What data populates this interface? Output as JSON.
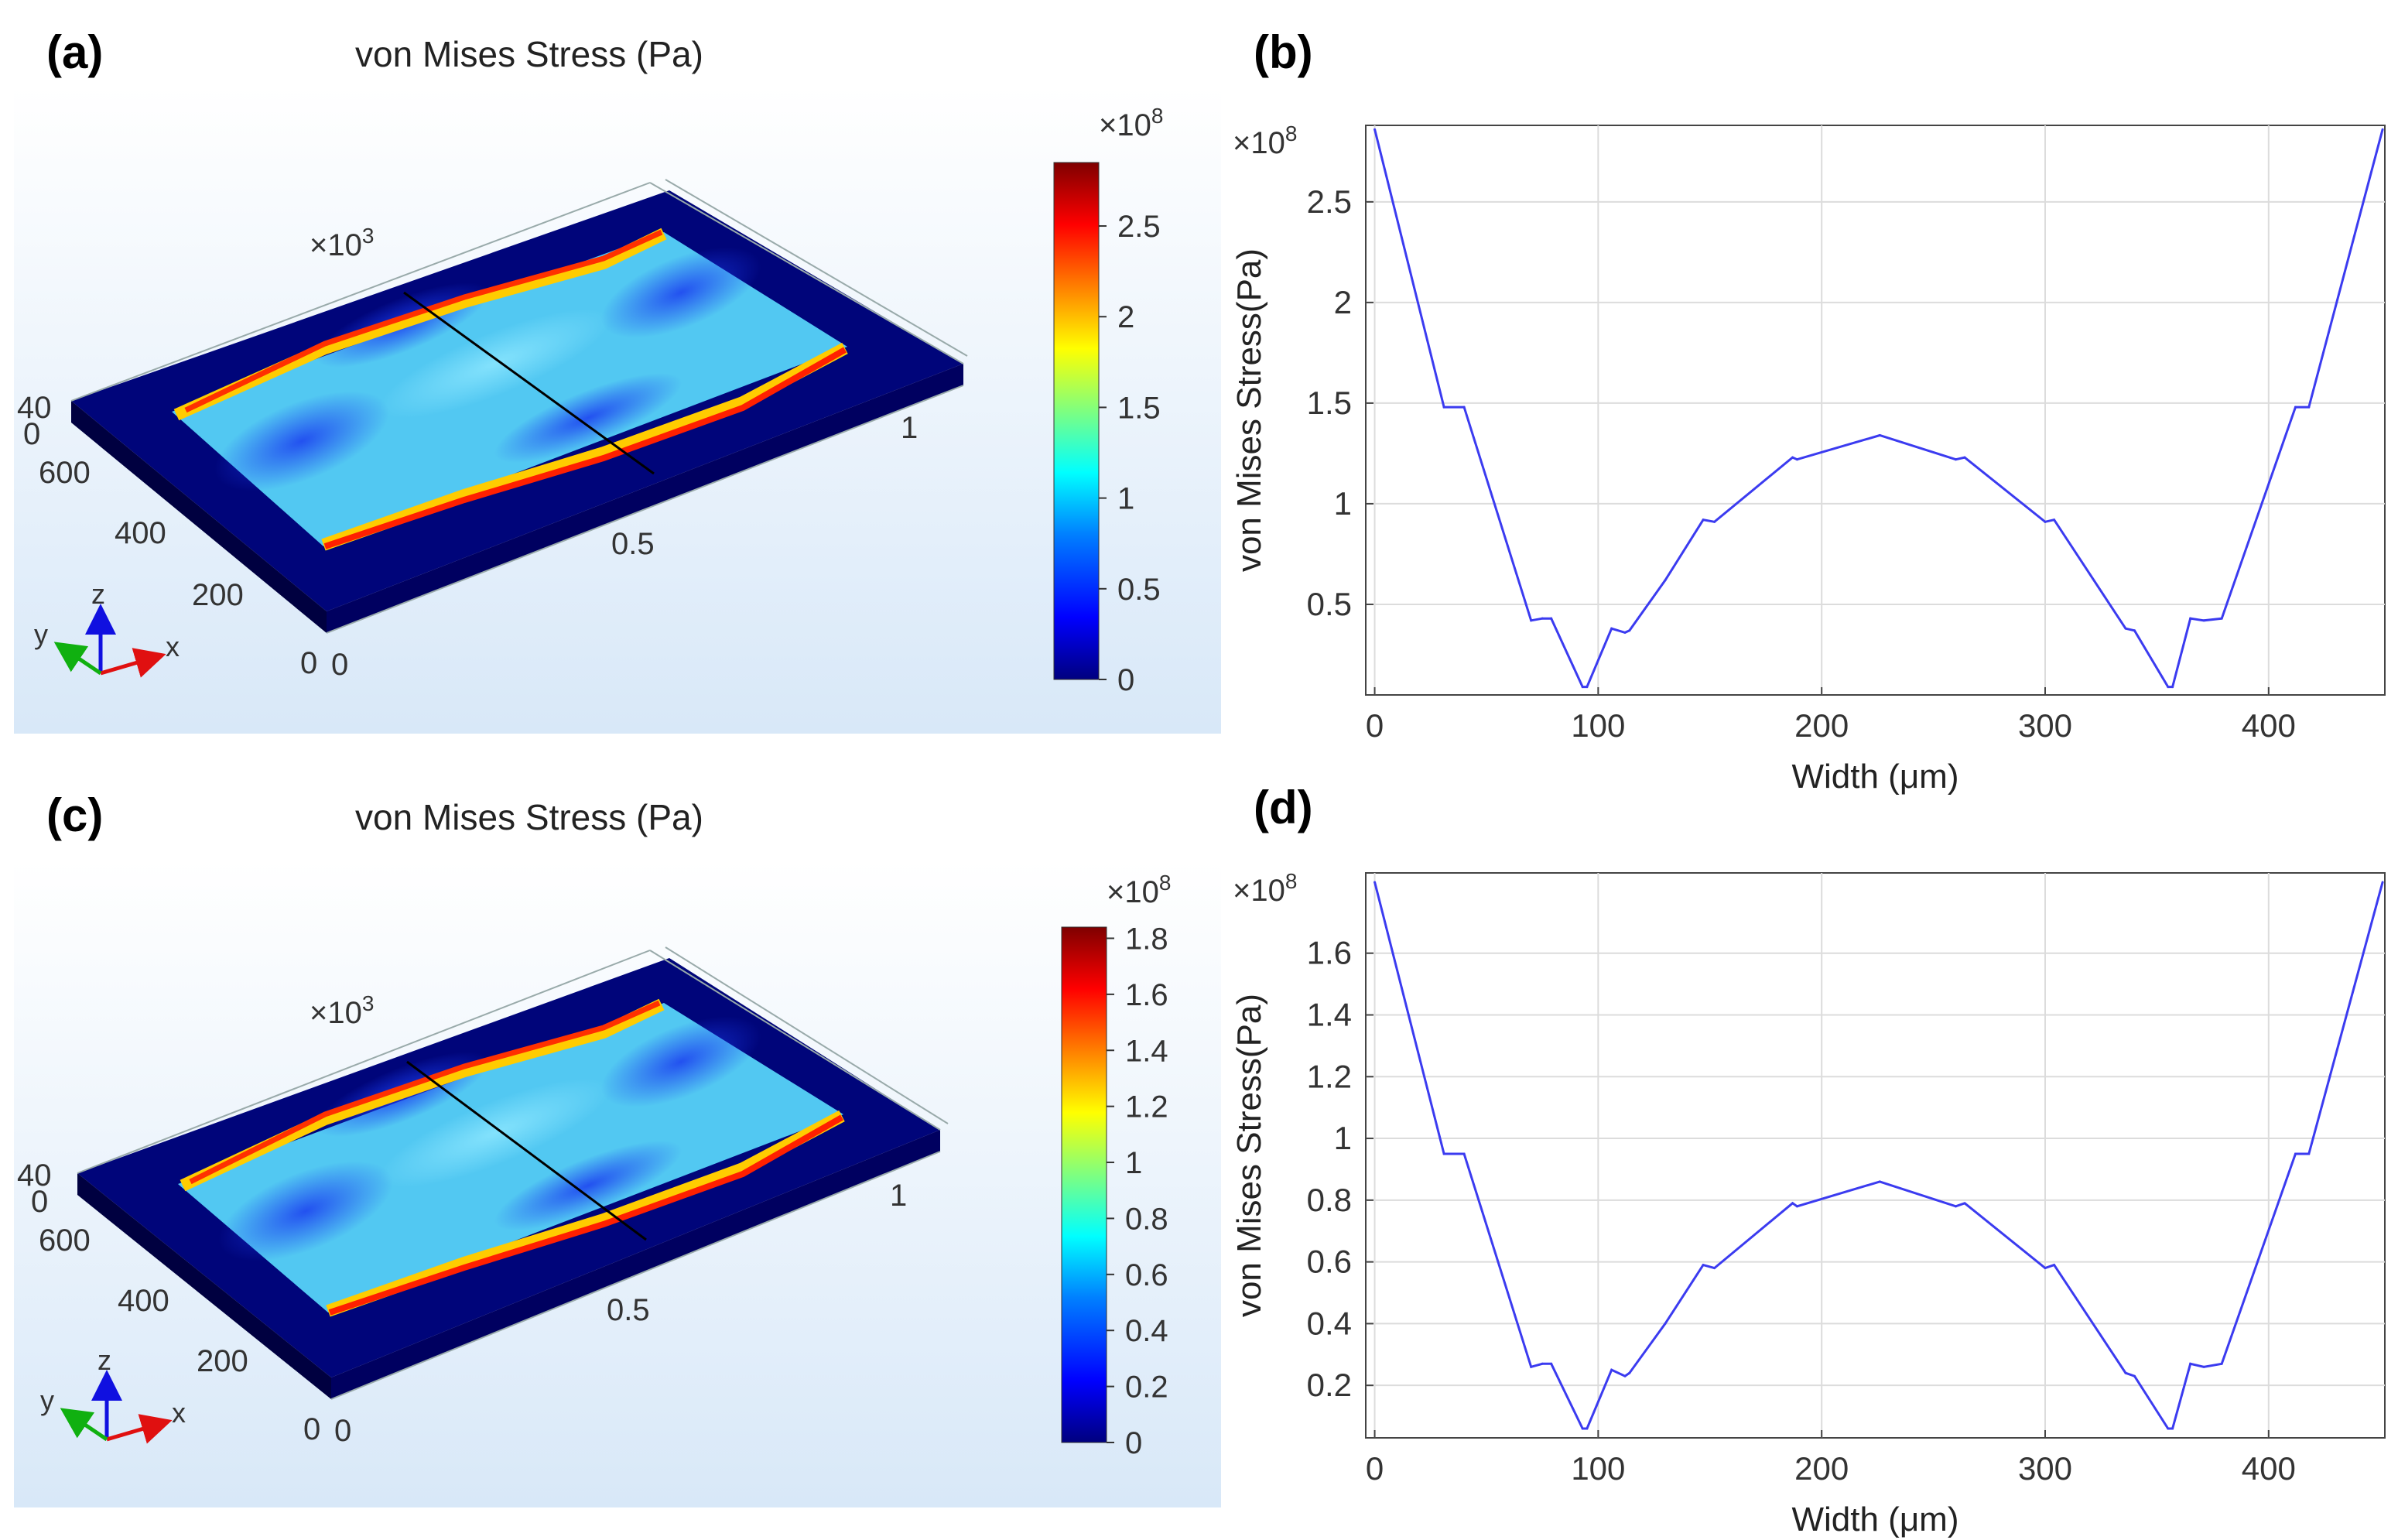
{
  "panels": {
    "a": {
      "label": "(a)",
      "title": "von Mises Stress (Pa)",
      "colorbar_multiplier": "×10",
      "colorbar_exp": "8",
      "colorbar_ticks": [
        "2.5",
        "2",
        "1.5",
        "1",
        "0.5",
        "0"
      ],
      "axis_multiplier": "×10",
      "axis_exp": "3",
      "axis_labels": {
        "z_top": "40",
        "z_zero": "0",
        "y600": "600",
        "y400": "400",
        "y200": "200",
        "origin": "0",
        "x0": "0",
        "x05": "0.5",
        "x1": "1"
      },
      "triad": {
        "x": "x",
        "y": "y",
        "z": "z"
      }
    },
    "b": {
      "label": "(b)"
    },
    "c": {
      "label": "(c)",
      "title": "von Mises Stress (Pa)",
      "colorbar_multiplier": "×10",
      "colorbar_exp": "8",
      "colorbar_ticks": [
        "1.8",
        "1.6",
        "1.4",
        "1.2",
        "1",
        "0.8",
        "0.6",
        "0.4",
        "0.2",
        "0"
      ],
      "axis_multiplier": "×10",
      "axis_exp": "3",
      "axis_labels": {
        "z_top": "40",
        "z_zero": "0",
        "y600": "600",
        "y400": "400",
        "y200": "200",
        "origin": "0",
        "x0": "0",
        "x05": "0.5",
        "x1": "1"
      },
      "triad": {
        "x": "x",
        "y": "y",
        "z": "z"
      }
    },
    "d": {
      "label": "(d)"
    }
  },
  "colors": {
    "line": "#3b3bf0",
    "grid": "#dcdcdc",
    "axis": "#333333",
    "cb_stops": [
      "#00007f",
      "#0000ff",
      "#007fff",
      "#00ffff",
      "#7fff7f",
      "#ffff00",
      "#ff7f00",
      "#ff0000",
      "#7f0000"
    ]
  },
  "chart_data": [
    {
      "panel": "b",
      "type": "line",
      "xlabel": "Width (μm)",
      "ylabel": "von Mises Stress(Pa)",
      "y_multiplier": "×10",
      "y_exp": "8",
      "xlim": [
        -4,
        452
      ],
      "ylim": [
        0.05,
        2.88
      ],
      "xticks": [
        0,
        100,
        200,
        300,
        400
      ],
      "xtick_labels": [
        "0",
        "100",
        "200",
        "300",
        "400"
      ],
      "yticks": [
        0.5,
        1,
        1.5,
        2,
        2.5
      ],
      "ytick_labels": [
        "0.5",
        "1",
        "1.5",
        "2",
        "2.5"
      ],
      "series": [
        {
          "name": "von Mises Stress",
          "x": [
            0,
            31,
            40,
            70,
            75,
            79,
            93,
            95,
            106,
            112,
            114,
            130,
            147,
            152,
            187,
            189,
            226,
            260,
            264,
            300,
            304,
            336,
            340,
            355,
            357,
            365,
            371,
            379,
            412,
            418,
            451
          ],
          "y": [
            2.86,
            1.48,
            1.48,
            0.42,
            0.43,
            0.43,
            0.09,
            0.09,
            0.38,
            0.36,
            0.37,
            0.62,
            0.92,
            0.91,
            1.23,
            1.22,
            1.34,
            1.22,
            1.23,
            0.91,
            0.92,
            0.38,
            0.37,
            0.09,
            0.09,
            0.43,
            0.42,
            0.43,
            1.48,
            1.48,
            2.86
          ]
        }
      ]
    },
    {
      "panel": "d",
      "type": "line",
      "xlabel": "Width (μm)",
      "ylabel": "von Mises Stress(Pa)",
      "y_multiplier": "×10",
      "y_exp": "8",
      "xlim": [
        -4,
        452
      ],
      "ylim": [
        0.03,
        1.86
      ],
      "xticks": [
        0,
        100,
        200,
        300,
        400
      ],
      "xtick_labels": [
        "0",
        "100",
        "200",
        "300",
        "400"
      ],
      "yticks": [
        0.2,
        0.4,
        0.6,
        0.8,
        1,
        1.2,
        1.4,
        1.6
      ],
      "ytick_labels": [
        "0.2",
        "0.4",
        "0.6",
        "0.8",
        "1",
        "1.2",
        "1.4",
        "1.6"
      ],
      "series": [
        {
          "name": "von Mises Stress",
          "x": [
            0,
            31,
            40,
            70,
            75,
            79,
            93,
            95,
            106,
            112,
            114,
            130,
            147,
            152,
            187,
            189,
            226,
            260,
            264,
            300,
            304,
            336,
            340,
            355,
            357,
            365,
            371,
            379,
            412,
            418,
            451
          ],
          "y": [
            1.83,
            0.95,
            0.95,
            0.26,
            0.27,
            0.27,
            0.06,
            0.06,
            0.25,
            0.23,
            0.24,
            0.4,
            0.59,
            0.58,
            0.79,
            0.78,
            0.86,
            0.78,
            0.79,
            0.58,
            0.59,
            0.24,
            0.23,
            0.06,
            0.06,
            0.27,
            0.26,
            0.27,
            0.95,
            0.95,
            1.83
          ]
        }
      ]
    }
  ]
}
